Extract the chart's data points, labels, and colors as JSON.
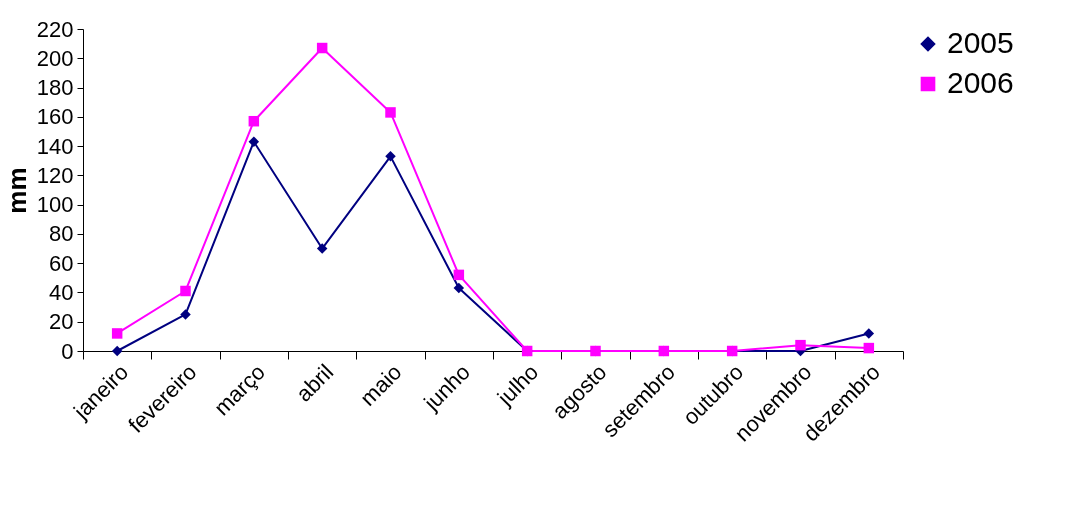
{
  "chart_data": {
    "type": "line",
    "ylabel": "mm",
    "categories": [
      "janeiro",
      "fevereiro",
      "março",
      "abril",
      "maio",
      "junho",
      "julho",
      "agosto",
      "setembro",
      "outubro",
      "novembro",
      "dezembro"
    ],
    "series": [
      {
        "name": "2005",
        "color": "#000080",
        "marker": "diamond",
        "values": [
          0,
          25,
          143,
          70,
          133,
          43,
          0,
          0,
          0,
          0,
          0,
          12
        ]
      },
      {
        "name": "2006",
        "color": "#ff00ff",
        "marker": "square",
        "values": [
          12,
          41,
          157,
          207,
          163,
          52,
          0,
          0,
          0,
          0,
          4,
          2
        ]
      }
    ],
    "ylim": [
      0,
      220
    ],
    "yticks": [
      0,
      20,
      40,
      60,
      80,
      100,
      120,
      140,
      160,
      180,
      200,
      220
    ],
    "grid": false,
    "legend": "right"
  }
}
